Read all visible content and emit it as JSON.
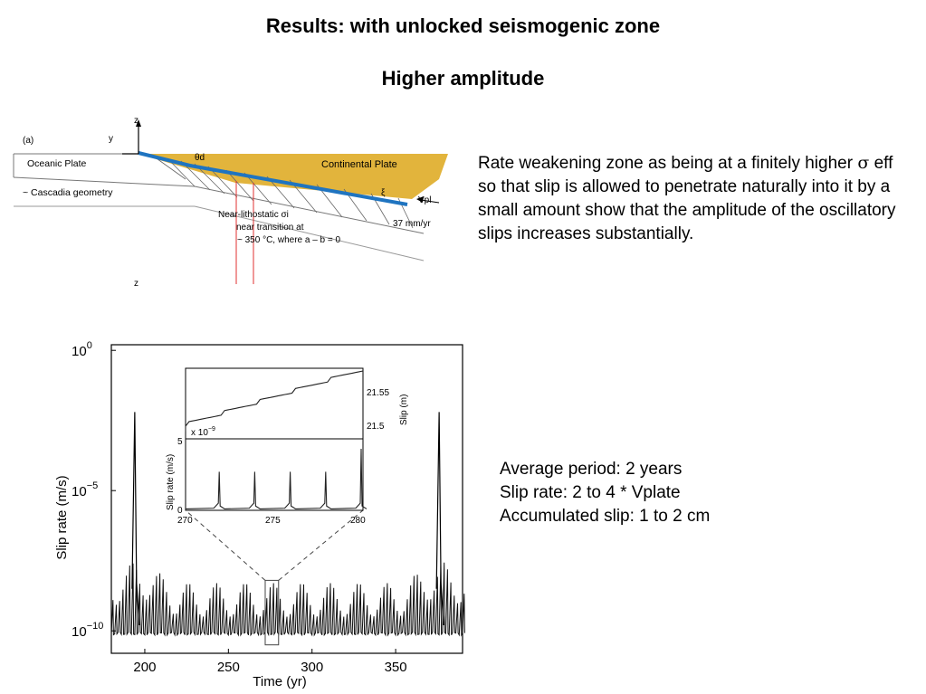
{
  "title": "Results: with unlocked seismogenic zone",
  "subtitle": "Higher amplitude",
  "description": {
    "before_sigma": "Rate weakening zone as being at a finitely higher ",
    "sigma": "σ",
    "after_sigma": " eff so that slip is allowed to penetrate naturally into it by a small amount show that the amplitude of the oscillatory slips increases substantially."
  },
  "stats": [
    "Average period: 2 years",
    "Slip rate:  2 to 4 * Vplate",
    "Accumulated slip: 1 to 2 cm"
  ],
  "geometry_figure": {
    "panel_label": "(a)",
    "z_axis": "z",
    "y_axis": "y",
    "z_bottom": "z",
    "theta": "θd",
    "oceanic_plate": "Oceanic Plate",
    "cascadia": "~ Cascadia geometry",
    "continental_plate": "Continental Plate",
    "xi": "ξ",
    "vpl": "Vpl",
    "rate": "37 mm/yr",
    "transition_lines": [
      "Near-lithostatic σi",
      "near transition at",
      "~ 350 °C, where a – b = 0"
    ],
    "colors": {
      "continental": "#E2B43C",
      "fault": "#1F74C0",
      "marker": "#E03030"
    }
  },
  "chart_data": {
    "type": "line",
    "xlabel": "Time (yr)",
    "ylabel": "Slip rate (m/s)",
    "x_ticks": [
      "200",
      "250",
      "300",
      "350"
    ],
    "y_ticks": [
      {
        "base": "10",
        "exp": "0"
      },
      {
        "base": "10",
        "exp": "−5"
      },
      {
        "base": "10",
        "exp": "−10"
      }
    ],
    "xlim": [
      180,
      390
    ],
    "ylim_log10": [
      -10.8,
      0.2
    ],
    "scale": "log",
    "large_events_x": [
      194,
      376
    ],
    "large_event_peak_log10": -2.2,
    "background_log10": -10.1,
    "oscillation_period_yr": 2.0,
    "highlight_window_x": [
      272,
      280
    ],
    "inset": {
      "xlabel_ticks": [
        "270",
        "275",
        "280"
      ],
      "slip_label": "Slip (m)",
      "slip_ticks": [
        "21.55",
        "21.5"
      ],
      "slip_range_m": [
        21.48,
        21.57
      ],
      "rate_label": "Slip rate (m/s)",
      "rate_multiplier": {
        "prefix": "x 10",
        "exp": "−9"
      },
      "rate_ticks": [
        "5",
        "0"
      ],
      "rate_ylim": [
        0,
        5
      ],
      "rate_spike_times": [
        272,
        274,
        276,
        278,
        280
      ],
      "rate_spike_heights": [
        2.7,
        2.7,
        2.7,
        2.7,
        4.3
      ]
    }
  }
}
